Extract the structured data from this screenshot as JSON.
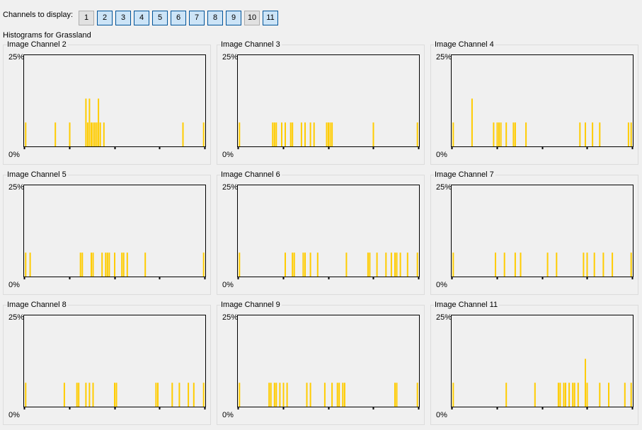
{
  "toolbar": {
    "label": "Channels to display:",
    "buttons": [
      {
        "label": "1",
        "active": false
      },
      {
        "label": "2",
        "active": true
      },
      {
        "label": "3",
        "active": true
      },
      {
        "label": "4",
        "active": true
      },
      {
        "label": "5",
        "active": true
      },
      {
        "label": "6",
        "active": true
      },
      {
        "label": "7",
        "active": true
      },
      {
        "label": "8",
        "active": true
      },
      {
        "label": "9",
        "active": true
      },
      {
        "label": "10",
        "active": false
      },
      {
        "label": "11",
        "active": true
      }
    ]
  },
  "subtitle": "Histograms for Grassland",
  "colors": {
    "bar": "#ffcc00",
    "axis": "#000000",
    "panel_border": "#dcdcdc"
  },
  "chart_data": [
    {
      "title": "Image Channel 2",
      "type": "bar",
      "y_top_label": "25%",
      "y_bottom_label": "0%",
      "ylim": [
        0,
        25
      ],
      "xlim": [
        0,
        100
      ],
      "bars": [
        {
          "x": 0.5,
          "y": 6.5
        },
        {
          "x": 17,
          "y": 6.5
        },
        {
          "x": 25,
          "y": 6.5
        },
        {
          "x": 34,
          "y": 13
        },
        {
          "x": 36,
          "y": 13
        },
        {
          "x": 35,
          "y": 6.5
        },
        {
          "x": 37,
          "y": 6.5
        },
        {
          "x": 38,
          "y": 6.5
        },
        {
          "x": 39,
          "y": 6.5
        },
        {
          "x": 40,
          "y": 6.5
        },
        {
          "x": 41,
          "y": 13
        },
        {
          "x": 42,
          "y": 6.5
        },
        {
          "x": 44,
          "y": 6.5
        },
        {
          "x": 88,
          "y": 6.5
        },
        {
          "x": 99.5,
          "y": 6.5
        }
      ]
    },
    {
      "title": "Image Channel 3",
      "type": "bar",
      "y_top_label": "25%",
      "y_bottom_label": "0%",
      "ylim": [
        0,
        25
      ],
      "xlim": [
        0,
        100
      ],
      "bars": [
        {
          "x": 0.5,
          "y": 6.5
        },
        {
          "x": 19,
          "y": 6.5
        },
        {
          "x": 20,
          "y": 6.5
        },
        {
          "x": 21,
          "y": 6.5
        },
        {
          "x": 24,
          "y": 6.5
        },
        {
          "x": 26,
          "y": 6.5
        },
        {
          "x": 29,
          "y": 6.5
        },
        {
          "x": 30,
          "y": 6.5
        },
        {
          "x": 35,
          "y": 6.5
        },
        {
          "x": 37,
          "y": 6.5
        },
        {
          "x": 40,
          "y": 6.5
        },
        {
          "x": 42,
          "y": 6.5
        },
        {
          "x": 49,
          "y": 6.5
        },
        {
          "x": 50,
          "y": 6.5
        },
        {
          "x": 51,
          "y": 6.5
        },
        {
          "x": 52,
          "y": 6.5
        },
        {
          "x": 75,
          "y": 6.5
        },
        {
          "x": 99.5,
          "y": 6.5
        }
      ]
    },
    {
      "title": "Image Channel 4",
      "type": "bar",
      "y_top_label": "25%",
      "y_bottom_label": "0%",
      "ylim": [
        0,
        25
      ],
      "xlim": [
        0,
        100
      ],
      "bars": [
        {
          "x": 0.5,
          "y": 6.5
        },
        {
          "x": 11,
          "y": 13
        },
        {
          "x": 23,
          "y": 6.5
        },
        {
          "x": 25,
          "y": 6.5
        },
        {
          "x": 26,
          "y": 6.5
        },
        {
          "x": 27,
          "y": 6.5
        },
        {
          "x": 30,
          "y": 6.5
        },
        {
          "x": 34,
          "y": 6.5
        },
        {
          "x": 35,
          "y": 6.5
        },
        {
          "x": 41,
          "y": 6.5
        },
        {
          "x": 71,
          "y": 6.5
        },
        {
          "x": 74,
          "y": 6.5
        },
        {
          "x": 78,
          "y": 6.5
        },
        {
          "x": 82,
          "y": 6.5
        },
        {
          "x": 98,
          "y": 6.5
        },
        {
          "x": 99.5,
          "y": 6.5
        }
      ]
    },
    {
      "title": "Image Channel 5",
      "type": "bar",
      "y_top_label": "25%",
      "y_bottom_label": "0%",
      "ylim": [
        0,
        25
      ],
      "xlim": [
        0,
        100
      ],
      "bars": [
        {
          "x": 0.5,
          "y": 6.5
        },
        {
          "x": 3,
          "y": 6.5
        },
        {
          "x": 31,
          "y": 6.5
        },
        {
          "x": 32,
          "y": 6.5
        },
        {
          "x": 37,
          "y": 6.5
        },
        {
          "x": 38,
          "y": 6.5
        },
        {
          "x": 43,
          "y": 6.5
        },
        {
          "x": 45,
          "y": 6.5
        },
        {
          "x": 46,
          "y": 6.5
        },
        {
          "x": 47,
          "y": 6.5
        },
        {
          "x": 50,
          "y": 6.5
        },
        {
          "x": 54,
          "y": 6.5
        },
        {
          "x": 55,
          "y": 6.5
        },
        {
          "x": 57,
          "y": 6.5
        },
        {
          "x": 67,
          "y": 6.5
        },
        {
          "x": 99.5,
          "y": 6.5
        }
      ]
    },
    {
      "title": "Image Channel 6",
      "type": "bar",
      "y_top_label": "25%",
      "y_bottom_label": "0%",
      "ylim": [
        0,
        25
      ],
      "xlim": [
        0,
        100
      ],
      "bars": [
        {
          "x": 0.5,
          "y": 6.5
        },
        {
          "x": 26,
          "y": 6.5
        },
        {
          "x": 30,
          "y": 6.5
        },
        {
          "x": 31,
          "y": 6.5
        },
        {
          "x": 36,
          "y": 6.5
        },
        {
          "x": 37,
          "y": 6.5
        },
        {
          "x": 40,
          "y": 6.5
        },
        {
          "x": 44,
          "y": 6.5
        },
        {
          "x": 60,
          "y": 6.5
        },
        {
          "x": 72,
          "y": 6.5
        },
        {
          "x": 73,
          "y": 6.5
        },
        {
          "x": 77,
          "y": 6.5
        },
        {
          "x": 82,
          "y": 6.5
        },
        {
          "x": 85,
          "y": 6.5
        },
        {
          "x": 87,
          "y": 6.5
        },
        {
          "x": 88,
          "y": 6.5
        },
        {
          "x": 90,
          "y": 6.5
        },
        {
          "x": 94,
          "y": 6.5
        },
        {
          "x": 99.5,
          "y": 6.5
        }
      ]
    },
    {
      "title": "Image Channel 7",
      "type": "bar",
      "y_top_label": "25%",
      "y_bottom_label": "0%",
      "ylim": [
        0,
        25
      ],
      "xlim": [
        0,
        100
      ],
      "bars": [
        {
          "x": 0.5,
          "y": 6.5
        },
        {
          "x": 24,
          "y": 6.5
        },
        {
          "x": 29,
          "y": 6.5
        },
        {
          "x": 35,
          "y": 6.5
        },
        {
          "x": 38,
          "y": 6.5
        },
        {
          "x": 53,
          "y": 6.5
        },
        {
          "x": 58,
          "y": 6.5
        },
        {
          "x": 73,
          "y": 6.5
        },
        {
          "x": 75,
          "y": 6.5
        },
        {
          "x": 79,
          "y": 6.5
        },
        {
          "x": 84,
          "y": 6.5
        },
        {
          "x": 89,
          "y": 6.5
        },
        {
          "x": 99.5,
          "y": 6.5
        }
      ]
    },
    {
      "title": "Image Channel 8",
      "type": "bar",
      "y_top_label": "25%",
      "y_bottom_label": "0%",
      "ylim": [
        0,
        25
      ],
      "xlim": [
        0,
        100
      ],
      "bars": [
        {
          "x": 0.5,
          "y": 6.5
        },
        {
          "x": 22,
          "y": 6.5
        },
        {
          "x": 29,
          "y": 6.5
        },
        {
          "x": 30,
          "y": 6.5
        },
        {
          "x": 34,
          "y": 6.5
        },
        {
          "x": 36,
          "y": 6.5
        },
        {
          "x": 38,
          "y": 6.5
        },
        {
          "x": 50,
          "y": 6.5
        },
        {
          "x": 51,
          "y": 6.5
        },
        {
          "x": 73,
          "y": 6.5
        },
        {
          "x": 74,
          "y": 6.5
        },
        {
          "x": 82,
          "y": 6.5
        },
        {
          "x": 86,
          "y": 6.5
        },
        {
          "x": 91,
          "y": 6.5
        },
        {
          "x": 94,
          "y": 6.5
        },
        {
          "x": 99.5,
          "y": 6.5
        }
      ]
    },
    {
      "title": "Image Channel 9",
      "type": "bar",
      "y_top_label": "25%",
      "y_bottom_label": "0%",
      "ylim": [
        0,
        25
      ],
      "xlim": [
        0,
        100
      ],
      "bars": [
        {
          "x": 0.5,
          "y": 6.5
        },
        {
          "x": 17,
          "y": 6.5
        },
        {
          "x": 18,
          "y": 6.5
        },
        {
          "x": 20,
          "y": 6.5
        },
        {
          "x": 21,
          "y": 6.5
        },
        {
          "x": 23,
          "y": 6.5
        },
        {
          "x": 25,
          "y": 6.5
        },
        {
          "x": 27,
          "y": 6.5
        },
        {
          "x": 38,
          "y": 6.5
        },
        {
          "x": 40,
          "y": 6.5
        },
        {
          "x": 48,
          "y": 6.5
        },
        {
          "x": 52,
          "y": 6.5
        },
        {
          "x": 55,
          "y": 6.5
        },
        {
          "x": 56,
          "y": 6.5
        },
        {
          "x": 58,
          "y": 6.5
        },
        {
          "x": 59,
          "y": 6.5
        },
        {
          "x": 87,
          "y": 6.5
        },
        {
          "x": 88,
          "y": 6.5
        },
        {
          "x": 99.5,
          "y": 6.5
        }
      ]
    },
    {
      "title": "Image Channel 11",
      "type": "bar",
      "y_top_label": "25%",
      "y_bottom_label": "0%",
      "ylim": [
        0,
        25
      ],
      "xlim": [
        0,
        100
      ],
      "bars": [
        {
          "x": 0.5,
          "y": 6.5
        },
        {
          "x": 30,
          "y": 6.5
        },
        {
          "x": 46,
          "y": 6.5
        },
        {
          "x": 59,
          "y": 6.5
        },
        {
          "x": 60,
          "y": 6.5
        },
        {
          "x": 62,
          "y": 6.5
        },
        {
          "x": 63,
          "y": 6.5
        },
        {
          "x": 65,
          "y": 6.5
        },
        {
          "x": 67,
          "y": 6.5
        },
        {
          "x": 68,
          "y": 6.5
        },
        {
          "x": 70,
          "y": 6.5
        },
        {
          "x": 74,
          "y": 13
        },
        {
          "x": 75,
          "y": 6.5
        },
        {
          "x": 82,
          "y": 6.5
        },
        {
          "x": 87,
          "y": 6.5
        },
        {
          "x": 96,
          "y": 6.5
        },
        {
          "x": 99.5,
          "y": 6.5
        }
      ]
    }
  ]
}
